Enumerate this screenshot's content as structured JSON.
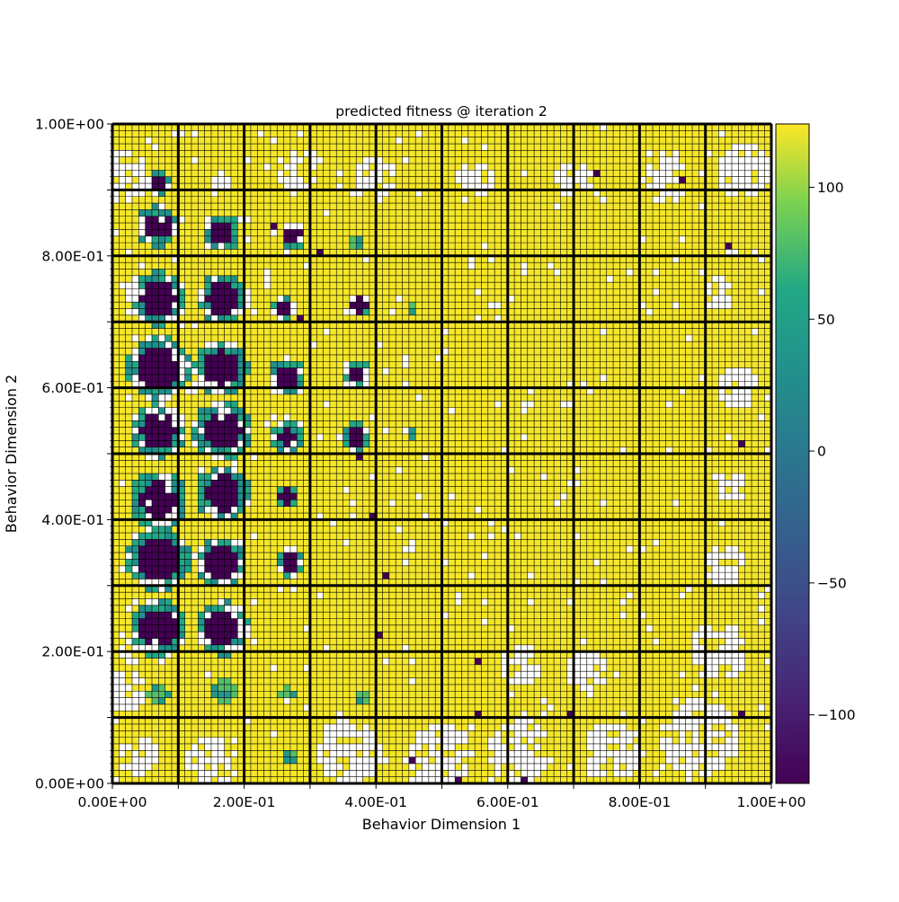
{
  "chart_data": {
    "type": "heatmap",
    "title": "predicted fitness @ iteration 2",
    "xlabel": "Behavior Dimension 1",
    "ylabel": "Behavior Dimension 2",
    "xlim": [
      0,
      1
    ],
    "ylim": [
      0,
      1
    ],
    "x_tick_labels": [
      "0.00E+00",
      "2.00E-01",
      "4.00E-01",
      "6.00E-01",
      "8.00E-01",
      "1.00E+00"
    ],
    "y_tick_labels": [
      "0.00E+00",
      "2.00E-01",
      "4.00E-01",
      "6.00E-01",
      "8.00E-01",
      "1.00E+00"
    ],
    "x_tick_values": [
      0,
      0.2,
      0.4,
      0.6,
      0.8,
      1.0
    ],
    "y_tick_values": [
      0,
      0.2,
      0.4,
      0.6,
      0.8,
      1.0
    ],
    "outer_grid_divisions": 10,
    "inner_grid_divisions": 10,
    "colormap": "viridis",
    "color_range": [
      -126,
      124
    ],
    "colorbar_ticks": [
      100,
      50,
      0,
      -50,
      -100
    ],
    "colorbar_tick_labels": [
      "100",
      "50",
      "0",
      "−50",
      "−100"
    ],
    "empty_cell_color": "#ffffff",
    "high_fitness_color": "#fde725",
    "low_fitness_color": "#440154",
    "low_fitness_regions": [
      {
        "cx": 0.07,
        "cy": 0.91,
        "r": 0.012
      },
      {
        "cx": 0.068,
        "cy": 0.845,
        "r": 0.02
      },
      {
        "cx": 0.165,
        "cy": 0.835,
        "r": 0.018
      },
      {
        "cx": 0.275,
        "cy": 0.83,
        "r": 0.012
      },
      {
        "cx": 0.07,
        "cy": 0.735,
        "r": 0.026
      },
      {
        "cx": 0.168,
        "cy": 0.735,
        "r": 0.024
      },
      {
        "cx": 0.26,
        "cy": 0.72,
        "r": 0.012
      },
      {
        "cx": 0.375,
        "cy": 0.725,
        "r": 0.012
      },
      {
        "cx": 0.07,
        "cy": 0.63,
        "r": 0.03
      },
      {
        "cx": 0.165,
        "cy": 0.63,
        "r": 0.026
      },
      {
        "cx": 0.265,
        "cy": 0.615,
        "r": 0.018
      },
      {
        "cx": 0.37,
        "cy": 0.62,
        "r": 0.014
      },
      {
        "cx": 0.07,
        "cy": 0.535,
        "r": 0.026
      },
      {
        "cx": 0.168,
        "cy": 0.535,
        "r": 0.028
      },
      {
        "cx": 0.265,
        "cy": 0.525,
        "r": 0.014
      },
      {
        "cx": 0.37,
        "cy": 0.525,
        "r": 0.014
      },
      {
        "cx": 0.07,
        "cy": 0.43,
        "r": 0.028
      },
      {
        "cx": 0.168,
        "cy": 0.44,
        "r": 0.026
      },
      {
        "cx": 0.265,
        "cy": 0.435,
        "r": 0.012
      },
      {
        "cx": 0.07,
        "cy": 0.34,
        "r": 0.03
      },
      {
        "cx": 0.165,
        "cy": 0.335,
        "r": 0.024
      },
      {
        "cx": 0.27,
        "cy": 0.335,
        "r": 0.014
      },
      {
        "cx": 0.07,
        "cy": 0.235,
        "r": 0.028
      },
      {
        "cx": 0.168,
        "cy": 0.235,
        "r": 0.026
      }
    ],
    "mid_fitness_regions": [
      {
        "cx": 0.07,
        "cy": 0.135,
        "r": 0.018
      },
      {
        "cx": 0.168,
        "cy": 0.14,
        "r": 0.018
      },
      {
        "cx": 0.265,
        "cy": 0.135,
        "r": 0.012
      },
      {
        "cx": 0.27,
        "cy": 0.04,
        "r": 0.014
      },
      {
        "cx": 0.38,
        "cy": 0.13,
        "r": 0.012
      },
      {
        "cx": 0.455,
        "cy": 0.53,
        "r": 0.01
      },
      {
        "cx": 0.455,
        "cy": 0.72,
        "r": 0.01
      },
      {
        "cx": 0.37,
        "cy": 0.82,
        "r": 0.01
      }
    ],
    "empty_regions": [
      {
        "cx": 0.02,
        "cy": 0.92,
        "r": 0.04
      },
      {
        "cx": 0.17,
        "cy": 0.91,
        "r": 0.02
      },
      {
        "cx": 0.28,
        "cy": 0.93,
        "r": 0.035
      },
      {
        "cx": 0.4,
        "cy": 0.92,
        "r": 0.035
      },
      {
        "cx": 0.55,
        "cy": 0.915,
        "r": 0.03
      },
      {
        "cx": 0.7,
        "cy": 0.915,
        "r": 0.03
      },
      {
        "cx": 0.84,
        "cy": 0.915,
        "r": 0.035
      },
      {
        "cx": 0.96,
        "cy": 0.93,
        "r": 0.04
      },
      {
        "cx": 0.92,
        "cy": 0.74,
        "r": 0.025
      },
      {
        "cx": 0.95,
        "cy": 0.6,
        "r": 0.03
      },
      {
        "cx": 0.94,
        "cy": 0.45,
        "r": 0.025
      },
      {
        "cx": 0.93,
        "cy": 0.33,
        "r": 0.035
      },
      {
        "cx": 0.92,
        "cy": 0.2,
        "r": 0.045
      },
      {
        "cx": 0.89,
        "cy": 0.07,
        "r": 0.06
      },
      {
        "cx": 0.76,
        "cy": 0.05,
        "r": 0.045
      },
      {
        "cx": 0.62,
        "cy": 0.05,
        "r": 0.05
      },
      {
        "cx": 0.5,
        "cy": 0.04,
        "r": 0.05
      },
      {
        "cx": 0.36,
        "cy": 0.05,
        "r": 0.05
      },
      {
        "cx": 0.15,
        "cy": 0.03,
        "r": 0.04
      },
      {
        "cx": 0.04,
        "cy": 0.04,
        "r": 0.03
      },
      {
        "cx": 0.02,
        "cy": 0.14,
        "r": 0.03
      },
      {
        "cx": 0.03,
        "cy": 0.2,
        "r": 0.02
      },
      {
        "cx": 0.12,
        "cy": 0.6,
        "r": 0.015
      },
      {
        "cx": 0.03,
        "cy": 0.75,
        "r": 0.02
      },
      {
        "cx": 0.62,
        "cy": 0.18,
        "r": 0.03
      },
      {
        "cx": 0.72,
        "cy": 0.17,
        "r": 0.03
      }
    ],
    "low_fitness_points": [
      [
        0.735,
        0.925
      ],
      [
        0.865,
        0.915
      ],
      [
        0.935,
        0.815
      ],
      [
        0.95,
        0.515
      ],
      [
        0.55,
        0.1
      ],
      [
        0.69,
        0.1
      ],
      [
        0.95,
        0.1
      ],
      [
        0.555,
        0.185
      ],
      [
        0.4,
        0.22
      ],
      [
        0.41,
        0.31
      ],
      [
        0.525,
        0.005
      ],
      [
        0.62,
        0.005
      ],
      [
        0.31,
        0.8
      ],
      [
        0.245,
        0.84
      ],
      [
        0.29,
        0.7
      ],
      [
        0.375,
        0.735
      ],
      [
        0.36,
        0.61
      ],
      [
        0.375,
        0.49
      ],
      [
        0.39,
        0.4
      ],
      [
        0.455,
        0.035
      ]
    ]
  }
}
